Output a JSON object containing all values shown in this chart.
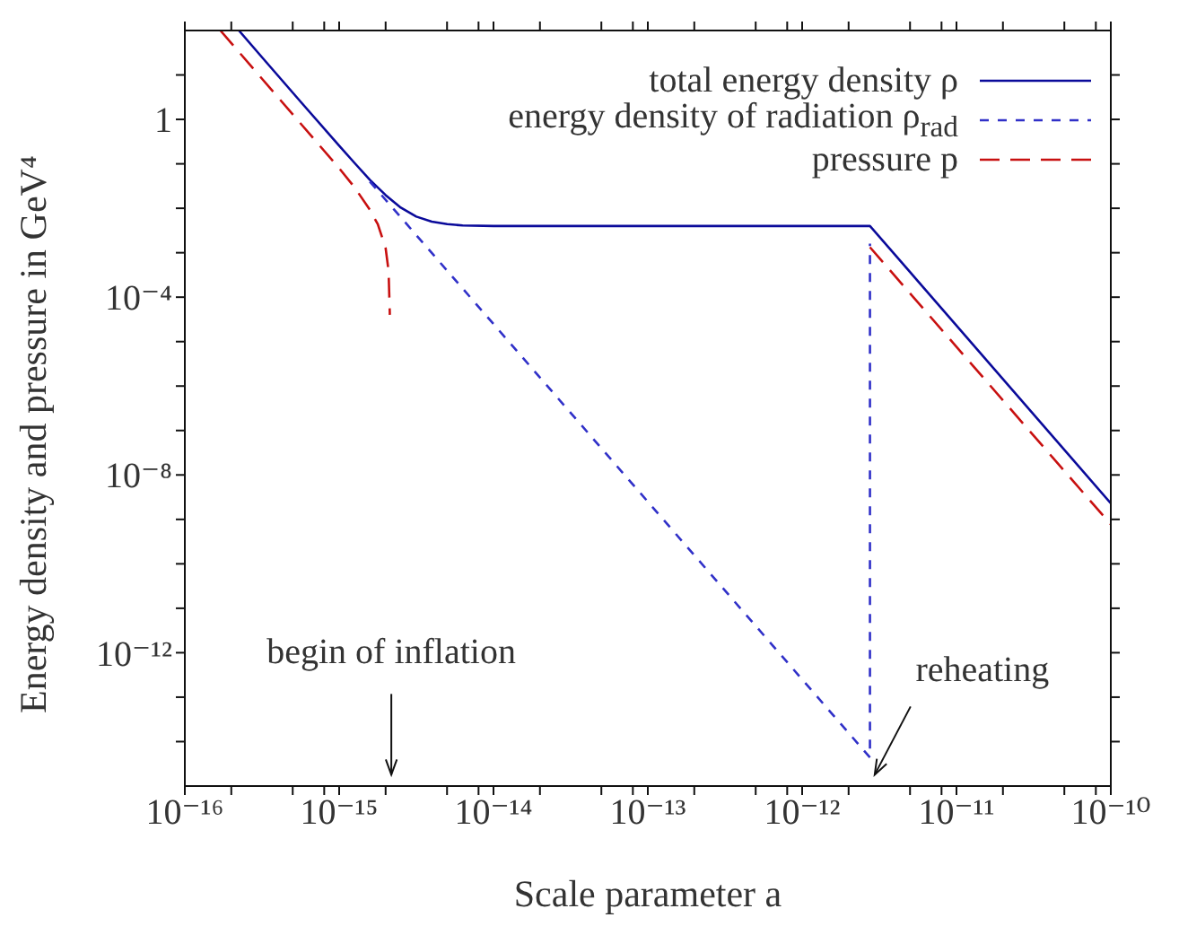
{
  "chart_data": {
    "type": "line",
    "xlabel": "Scale parameter a",
    "ylabel": "Energy density and pressure in GeV⁴",
    "log": "xy",
    "xlim": [
      1e-16,
      1e-10
    ],
    "ylim": [
      1e-15,
      100
    ],
    "xticks": [
      {
        "value": 1e-16,
        "label": "10⁻¹⁶"
      },
      {
        "value": 2e-16,
        "label": null
      },
      {
        "value": 5e-16,
        "label": null
      },
      {
        "value": 8e-16,
        "label": null
      },
      {
        "value": 1e-15,
        "label": "10⁻¹⁵"
      },
      {
        "value": 2e-15,
        "label": null
      },
      {
        "value": 5e-15,
        "label": null
      },
      {
        "value": 8e-15,
        "label": null
      },
      {
        "value": 1e-14,
        "label": "10⁻¹⁴"
      },
      {
        "value": 2e-14,
        "label": null
      },
      {
        "value": 5e-14,
        "label": null
      },
      {
        "value": 8e-14,
        "label": null
      },
      {
        "value": 1e-13,
        "label": "10⁻¹³"
      },
      {
        "value": 2e-13,
        "label": null
      },
      {
        "value": 5e-13,
        "label": null
      },
      {
        "value": 8e-13,
        "label": null
      },
      {
        "value": 1e-12,
        "label": "10⁻¹²"
      },
      {
        "value": 2e-12,
        "label": null
      },
      {
        "value": 5e-12,
        "label": null
      },
      {
        "value": 8e-12,
        "label": null
      },
      {
        "value": 1e-11,
        "label": "10⁻¹¹"
      },
      {
        "value": 2e-11,
        "label": null
      },
      {
        "value": 5e-11,
        "label": null
      },
      {
        "value": 8e-11,
        "label": null
      },
      {
        "value": 1e-10,
        "label": "10⁻¹⁰"
      }
    ],
    "yticks": [
      {
        "value": 1e-14,
        "label": null
      },
      {
        "value": 1e-13,
        "label": null
      },
      {
        "value": 1e-12,
        "label": "10⁻¹²"
      },
      {
        "value": 1e-11,
        "label": null
      },
      {
        "value": 1e-10,
        "label": null
      },
      {
        "value": 1e-09,
        "label": null
      },
      {
        "value": 1e-08,
        "label": "10⁻⁸"
      },
      {
        "value": 1e-07,
        "label": null
      },
      {
        "value": 1e-06,
        "label": null
      },
      {
        "value": 1e-05,
        "label": null
      },
      {
        "value": 0.0001,
        "label": "10⁻⁴"
      },
      {
        "value": 0.001,
        "label": null
      },
      {
        "value": 0.01,
        "label": null
      },
      {
        "value": 0.1,
        "label": null
      },
      1,
      {
        "value": 10,
        "label": null
      }
    ],
    "grid": false,
    "legend": "top right",
    "marker": "none",
    "series": [
      {
        "name": "total energy density ρ",
        "color": "#0a0a9a",
        "line_style": "solid",
        "x": [
          2.24e-16,
          3.16e-16,
          5.62e-16,
          1e-15,
          1.26e-15,
          1.58e-15,
          2e-15,
          2.51e-15,
          3.16e-15,
          3.98e-15,
          5.01e-15,
          6.31e-15,
          1e-14,
          2.75e-12,
          1e-10
        ],
        "values": [
          100,
          25.1,
          2.51,
          0.255,
          0.104,
          0.0438,
          0.0198,
          0.0103,
          0.0065,
          0.005,
          0.0044,
          0.0041,
          0.004,
          0.004,
          2.3e-09
        ]
      },
      {
        "name": "energy density of radiation ρ$_{rad}$",
        "color": "#3030c8",
        "line_style": "dashed",
        "x": [
          1.58e-15,
          2.75e-12,
          2.75e-12
        ],
        "values": [
          0.0398,
          4.4e-15,
          0.0016
        ]
      },
      {
        "name": "pressure p",
        "color": "#c81010",
        "line_style": "dashed",
        "x": [
          1.7e-16,
          1e-15,
          1.26e-15,
          1.58e-15,
          1.78e-15,
          2e-15,
          2.09e-15,
          2.13e-15,
          2.5e-12,
          2.75e-12,
          1e-10
        ],
        "values": [
          100,
          0.0797,
          0.0293,
          0.00927,
          0.00437,
          0.00127,
          0.00039,
          4e-05,
          null,
          0.00133,
          7.7e-10
        ]
      }
    ],
    "annotations": [
      "begin of inflation",
      "reheating"
    ]
  }
}
